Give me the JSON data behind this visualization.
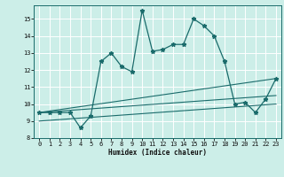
{
  "xlabel": "Humidex (Indice chaleur)",
  "xlim": [
    -0.5,
    23.5
  ],
  "ylim": [
    8.0,
    15.8
  ],
  "yticks": [
    8,
    9,
    10,
    11,
    12,
    13,
    14,
    15
  ],
  "xticks": [
    0,
    1,
    2,
    3,
    4,
    5,
    6,
    7,
    8,
    9,
    10,
    11,
    12,
    13,
    14,
    15,
    16,
    17,
    18,
    19,
    20,
    21,
    22,
    23
  ],
  "bg_color": "#cceee8",
  "line_color": "#1a6b6b",
  "grid_color": "#ffffff",
  "line1_x": [
    0,
    1,
    2,
    3,
    4,
    5,
    6,
    7,
    8,
    9,
    10,
    11,
    12,
    13,
    14,
    15,
    16,
    17,
    18,
    19,
    20,
    21,
    22,
    23
  ],
  "line1_y": [
    9.5,
    9.5,
    9.5,
    9.5,
    8.6,
    9.3,
    12.5,
    13.0,
    12.2,
    11.9,
    15.5,
    13.1,
    13.2,
    13.5,
    13.5,
    15.0,
    14.6,
    14.0,
    12.5,
    10.0,
    10.1,
    9.5,
    10.3,
    11.5
  ],
  "line2_x": [
    0,
    23
  ],
  "line2_y": [
    9.5,
    11.5
  ],
  "line3_x": [
    0,
    23
  ],
  "line3_y": [
    9.5,
    10.5
  ],
  "line4_x": [
    0,
    23
  ],
  "line4_y": [
    9.0,
    10.0
  ],
  "figsize": [
    3.2,
    2.0
  ],
  "dpi": 100
}
